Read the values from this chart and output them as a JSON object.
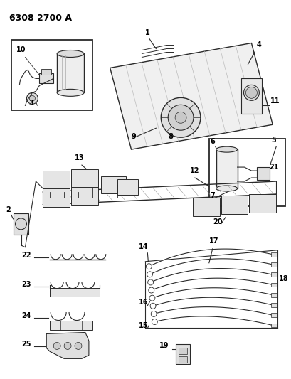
{
  "title": "6308 2700 A",
  "bg": "#ffffff",
  "lc": "#2a2a2a",
  "tc": "#000000",
  "figsize": [
    4.1,
    5.33
  ],
  "dpi": 100
}
